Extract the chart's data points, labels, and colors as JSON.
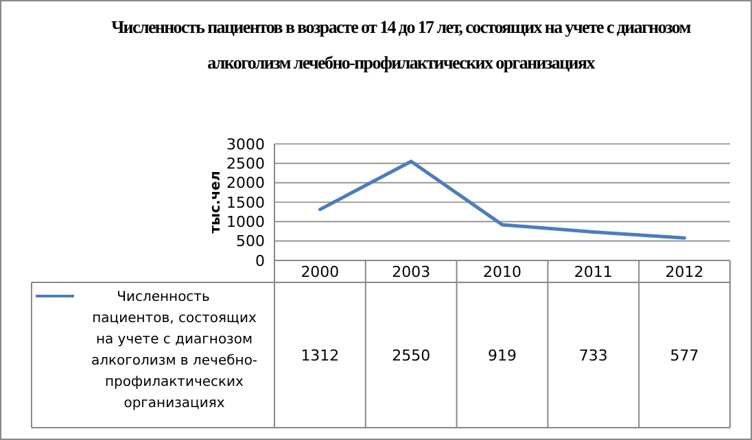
{
  "chart_data": {
    "type": "line",
    "title": "Численность пациентов в возрасте от 14 до 17 лет, состоящих на учете  с диагнозом алкоголизм  лечебно-профилактических организациях",
    "ylabel": "тыс.чел",
    "categories": [
      "2000",
      "2003",
      "2010",
      "2011",
      "2012"
    ],
    "series": [
      {
        "name": "Численность пациентов, состоящих на учете  с диагнозом алкоголизм в лечебно-профилактических организациях",
        "color": "#4a7ebb",
        "values": [
          1312,
          2550,
          919,
          733,
          577
        ]
      }
    ],
    "ylim": [
      0,
      3000
    ],
    "yticks": [
      0,
      500,
      1000,
      1500,
      2000,
      2500,
      3000
    ],
    "grid": "y",
    "legend": "bottom",
    "data_labels": true,
    "marker": "none",
    "line_style": "solid"
  }
}
